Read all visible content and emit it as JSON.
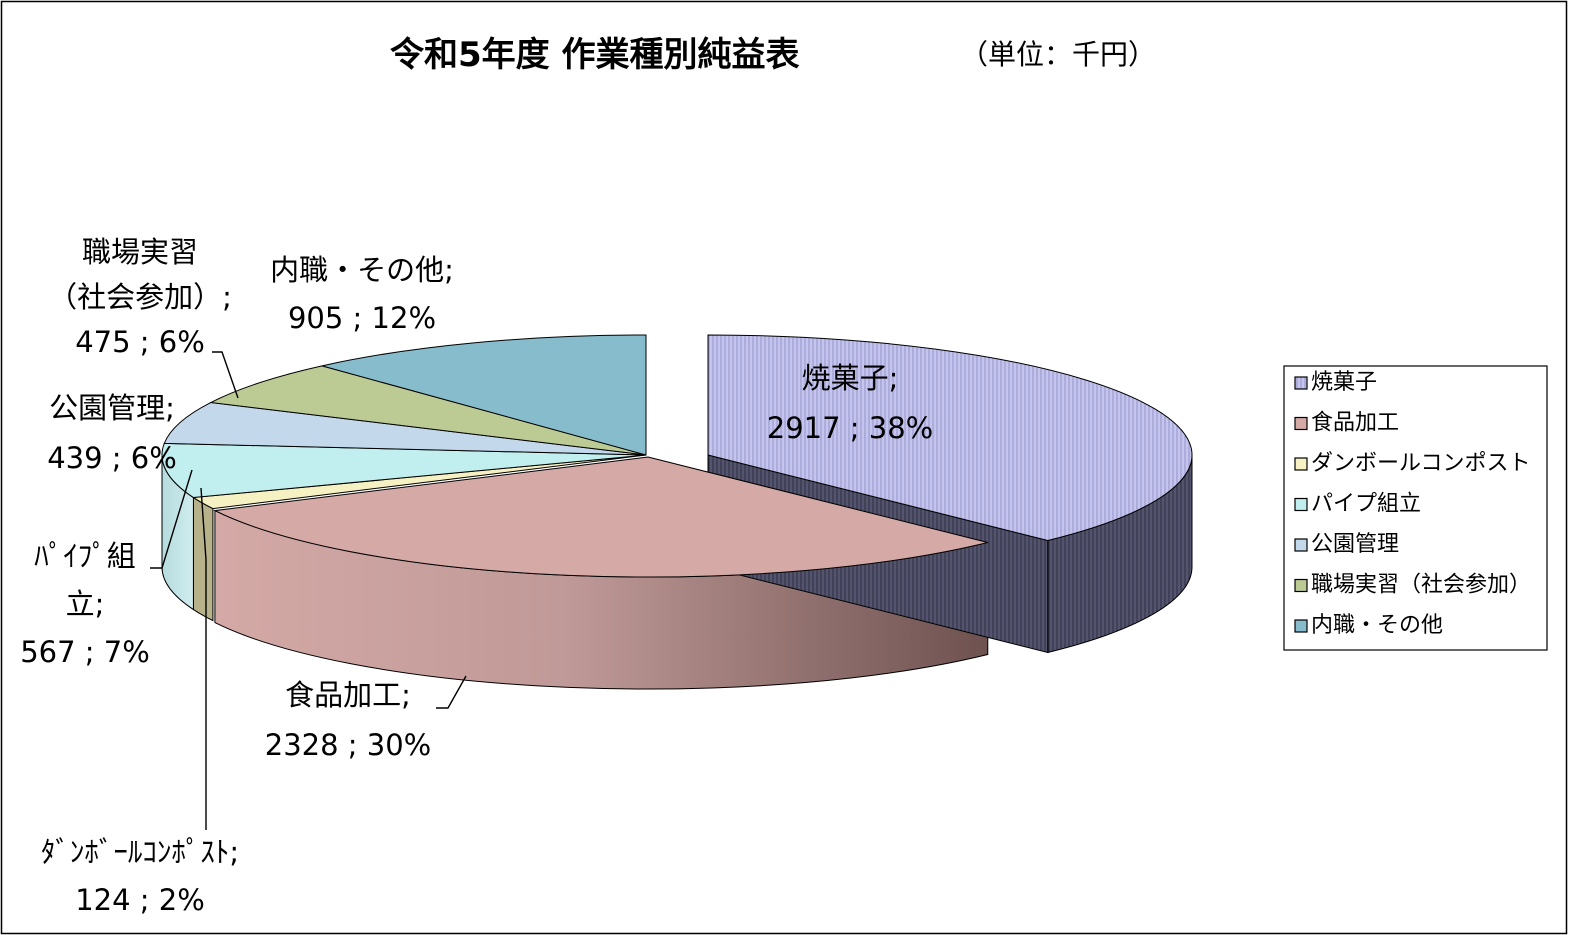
{
  "chart_data": {
    "type": "pie",
    "title": "令和5年度 作業種別純益表",
    "unit_note": "（単位：千円）",
    "categories": [
      "焼菓子",
      "食品加工",
      "ダンボールコンポスト",
      "パイプ組立",
      "公園管理",
      "職場実習（社会参加）",
      "内職・その他"
    ],
    "values": [
      2917,
      2328,
      124,
      567,
      439,
      475,
      905
    ],
    "percents": [
      "38%",
      "30%",
      "2%",
      "7%",
      "6%",
      "6%",
      "12%"
    ],
    "data_labels": [
      {
        "lines": [
          "焼菓子;",
          "2917 ; 38%"
        ]
      },
      {
        "lines": [
          "食品加工;",
          "2328 ; 30%"
        ]
      },
      {
        "lines": [
          "ﾀﾞﾝﾎﾞｰﾙｺﾝﾎﾟｽﾄ;",
          "124 ; 2%"
        ]
      },
      {
        "lines": [
          "ﾊﾟｲﾌﾟ組",
          "立;",
          "567 ; 7%"
        ]
      },
      {
        "lines": [
          "公園管理;",
          "439 ; 6%"
        ]
      },
      {
        "lines": [
          "職場実習",
          "（社会参加）;",
          "475 ; 6%"
        ]
      },
      {
        "lines": [
          "内職・その他;",
          "905 ; 12%"
        ]
      }
    ],
    "legend": {
      "position": "right",
      "entries": [
        "焼菓子",
        "食品加工",
        "ダンボールコンポスト",
        "パイプ組立",
        "公園管理",
        "職場実習（社会参加）",
        "内職・その他"
      ]
    },
    "colors": [
      "#c4c4ee",
      "#d4a9a6",
      "#f5f1c2",
      "#c1eeee",
      "#c4d8ec",
      "#bccb94",
      "#87bccc"
    ],
    "side_colors": [
      "#54546e",
      "#8e6864",
      "#b7b28a",
      "#82a8a8",
      "#8898aa",
      "#7e8a5c",
      "#587e8a"
    ],
    "style": "3d-exploded"
  }
}
